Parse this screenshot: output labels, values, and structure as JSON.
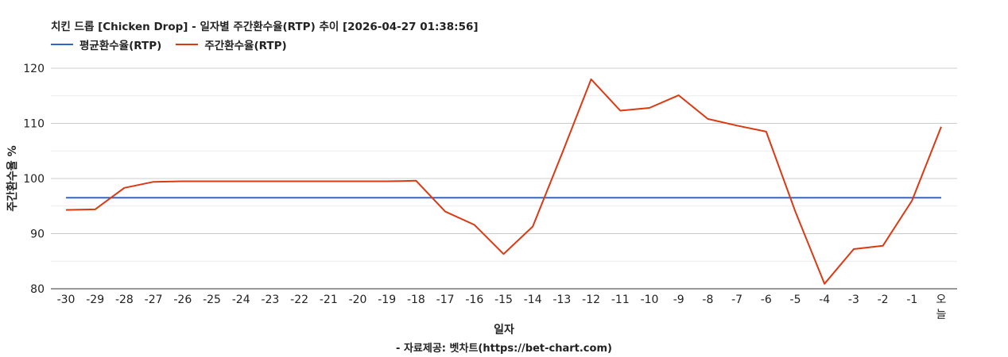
{
  "chart_data": {
    "type": "line",
    "title": "치킨 드롭 [Chicken Drop] - 일자별 주간환수율(RTP) 추이 [2026-04-27 01:38:56]",
    "xlabel": "일자",
    "ylabel": "주간환수율 %",
    "categories": [
      "-30",
      "-29",
      "-28",
      "-27",
      "-26",
      "-25",
      "-24",
      "-23",
      "-22",
      "-21",
      "-20",
      "-19",
      "-18",
      "-17",
      "-16",
      "-15",
      "-14",
      "-13",
      "-12",
      "-11",
      "-10",
      "-9",
      "-8",
      "-7",
      "-6",
      "-5",
      "-4",
      "-3",
      "-2",
      "-1",
      "오늘"
    ],
    "ylim": [
      80,
      120
    ],
    "yticks": [
      80,
      90,
      100,
      110,
      120
    ],
    "grid": true,
    "legend_position": "top-left",
    "series": [
      {
        "name": "평균환수율(RTP)",
        "color": "#3366cc",
        "values": [
          96.5,
          96.5,
          96.5,
          96.5,
          96.5,
          96.5,
          96.5,
          96.5,
          96.5,
          96.5,
          96.5,
          96.5,
          96.5,
          96.5,
          96.5,
          96.5,
          96.5,
          96.5,
          96.5,
          96.5,
          96.5,
          96.5,
          96.5,
          96.5,
          96.5,
          96.5,
          96.5,
          96.5,
          96.5,
          96.5,
          96.5
        ]
      },
      {
        "name": "주간환수율(RTP)",
        "color": "#dc3912",
        "values": [
          94.3,
          94.4,
          98.3,
          99.4,
          99.5,
          99.5,
          99.5,
          99.5,
          99.5,
          99.5,
          99.5,
          99.5,
          99.6,
          94.0,
          91.6,
          86.3,
          91.3,
          104.5,
          118.0,
          112.3,
          112.8,
          115.1,
          110.8,
          109.6,
          108.5,
          94.0,
          80.9,
          87.2,
          87.8,
          96.0,
          109.4
        ]
      }
    ]
  },
  "footer": "- 자료제공: 벳차트(https://bet-chart.com)"
}
